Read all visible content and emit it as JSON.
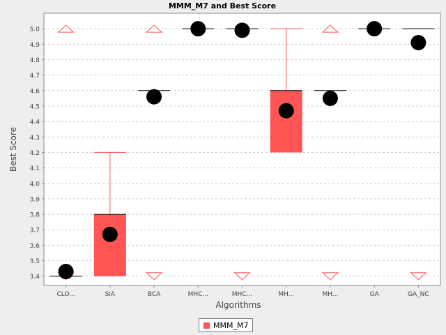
{
  "chart_data": {
    "type": "box",
    "title": "MMM_M7 and Best Score",
    "xlabel": "Algorithms",
    "ylabel": "Best Score",
    "categories": [
      "CLO...",
      "SIA",
      "BCA",
      "MHC...",
      "MHC...",
      "MH...",
      "MH...",
      "GA",
      "GA_NC"
    ],
    "yticks": [
      "3.4",
      "3.5",
      "3.6",
      "3.7",
      "3.8",
      "3.9",
      "4.0",
      "4.1",
      "4.2",
      "4.3",
      "4.4",
      "4.5",
      "4.6",
      "4.7",
      "4.8",
      "4.9",
      "5.0"
    ],
    "ylim": [
      3.34,
      5.1
    ],
    "grid": true,
    "legend_position": "bottom",
    "series": [
      {
        "name": "MMM_M7",
        "color": "#ff5555",
        "boxes": [
          {
            "q1": 3.4,
            "median": 3.4,
            "q3": 3.4,
            "whisker_low": null,
            "whisker_high": null,
            "mean": 3.43,
            "max_outlier": 5.0,
            "min_outlier": 3.4
          },
          {
            "q1": 3.4,
            "median": 3.8,
            "q3": 3.8,
            "whisker_low": null,
            "whisker_high": 4.2,
            "mean": 3.67,
            "max_outlier": null,
            "min_outlier": null
          },
          {
            "q1": 4.6,
            "median": 4.6,
            "q3": 4.6,
            "whisker_low": null,
            "whisker_high": null,
            "mean": 4.56,
            "max_outlier": 5.0,
            "min_outlier": 3.4
          },
          {
            "q1": 5.0,
            "median": 5.0,
            "q3": 5.0,
            "whisker_low": null,
            "whisker_high": null,
            "mean": 5.0,
            "max_outlier": null,
            "min_outlier": null
          },
          {
            "q1": 5.0,
            "median": 5.0,
            "q3": 5.0,
            "whisker_low": null,
            "whisker_high": null,
            "mean": 4.99,
            "max_outlier": null,
            "min_outlier": 3.4
          },
          {
            "q1": 4.2,
            "median": 4.6,
            "q3": 4.6,
            "whisker_low": null,
            "whisker_high": 5.0,
            "mean": 4.47,
            "max_outlier": null,
            "min_outlier": null
          },
          {
            "q1": 4.6,
            "median": 4.6,
            "q3": 4.6,
            "whisker_low": null,
            "whisker_high": null,
            "mean": 4.55,
            "max_outlier": 5.0,
            "min_outlier": 3.4
          },
          {
            "q1": 5.0,
            "median": 5.0,
            "q3": 5.0,
            "whisker_low": null,
            "whisker_high": null,
            "mean": 5.0,
            "max_outlier": null,
            "min_outlier": null
          },
          {
            "q1": 5.0,
            "median": 5.0,
            "q3": 5.0,
            "whisker_low": null,
            "whisker_high": null,
            "mean": 4.91,
            "max_outlier": null,
            "min_outlier": 3.4
          }
        ]
      }
    ]
  }
}
